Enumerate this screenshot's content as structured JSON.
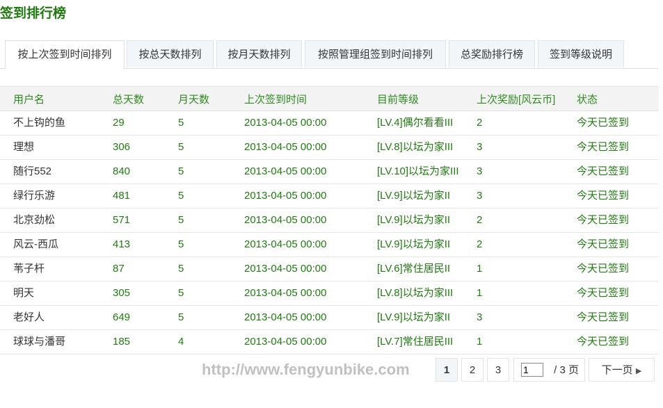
{
  "title": "签到排行榜",
  "tabs": [
    {
      "label": "按上次签到时间排列",
      "active": true
    },
    {
      "label": "按总天数排列"
    },
    {
      "label": "按月天数排列"
    },
    {
      "label": "按照管理组签到时间排列"
    },
    {
      "label": "总奖励排行榜"
    },
    {
      "label": "签到等级说明"
    }
  ],
  "table": {
    "headers": [
      "用户名",
      "总天数",
      "月天数",
      "上次签到时间",
      "目前等级",
      "上次奖励[风云币]",
      "状态"
    ],
    "rows": [
      [
        "不上钩的鱼",
        "29",
        "5",
        "2013-04-05 00:00",
        "[LV.4]偶尔看看III",
        "2",
        "今天已签到"
      ],
      [
        "理想",
        "306",
        "5",
        "2013-04-05 00:00",
        "[LV.8]以坛为家III",
        "3",
        "今天已签到"
      ],
      [
        "随行552",
        "840",
        "5",
        "2013-04-05 00:00",
        "[LV.10]以坛为家III",
        "3",
        "今天已签到"
      ],
      [
        "绿行乐游",
        "481",
        "5",
        "2013-04-05 00:00",
        "[LV.9]以坛为家II",
        "3",
        "今天已签到"
      ],
      [
        "北京劲松",
        "571",
        "5",
        "2013-04-05 00:00",
        "[LV.9]以坛为家II",
        "2",
        "今天已签到"
      ],
      [
        "风云-西瓜",
        "413",
        "5",
        "2013-04-05 00:00",
        "[LV.9]以坛为家II",
        "2",
        "今天已签到"
      ],
      [
        "苇子杆",
        "87",
        "5",
        "2013-04-05 00:00",
        "[LV.6]常住居民II",
        "1",
        "今天已签到"
      ],
      [
        "明天",
        "305",
        "5",
        "2013-04-05 00:00",
        "[LV.8]以坛为家III",
        "1",
        "今天已签到"
      ],
      [
        "老好人",
        "649",
        "5",
        "2013-04-05 00:00",
        "[LV.9]以坛为家II",
        "3",
        "今天已签到"
      ],
      [
        "球球与潘哥",
        "185",
        "4",
        "2013-04-05 00:00",
        "[LV.7]常住居民III",
        "1",
        "今天已签到"
      ]
    ]
  },
  "pager": {
    "pages": [
      "1",
      "2",
      "3"
    ],
    "current": "1",
    "input_value": "1",
    "total": "/ 3 页",
    "next": "下一页"
  },
  "watermark": "http://www.fengyunbike.com",
  "colors": {
    "accent": "#1f7a0f"
  }
}
